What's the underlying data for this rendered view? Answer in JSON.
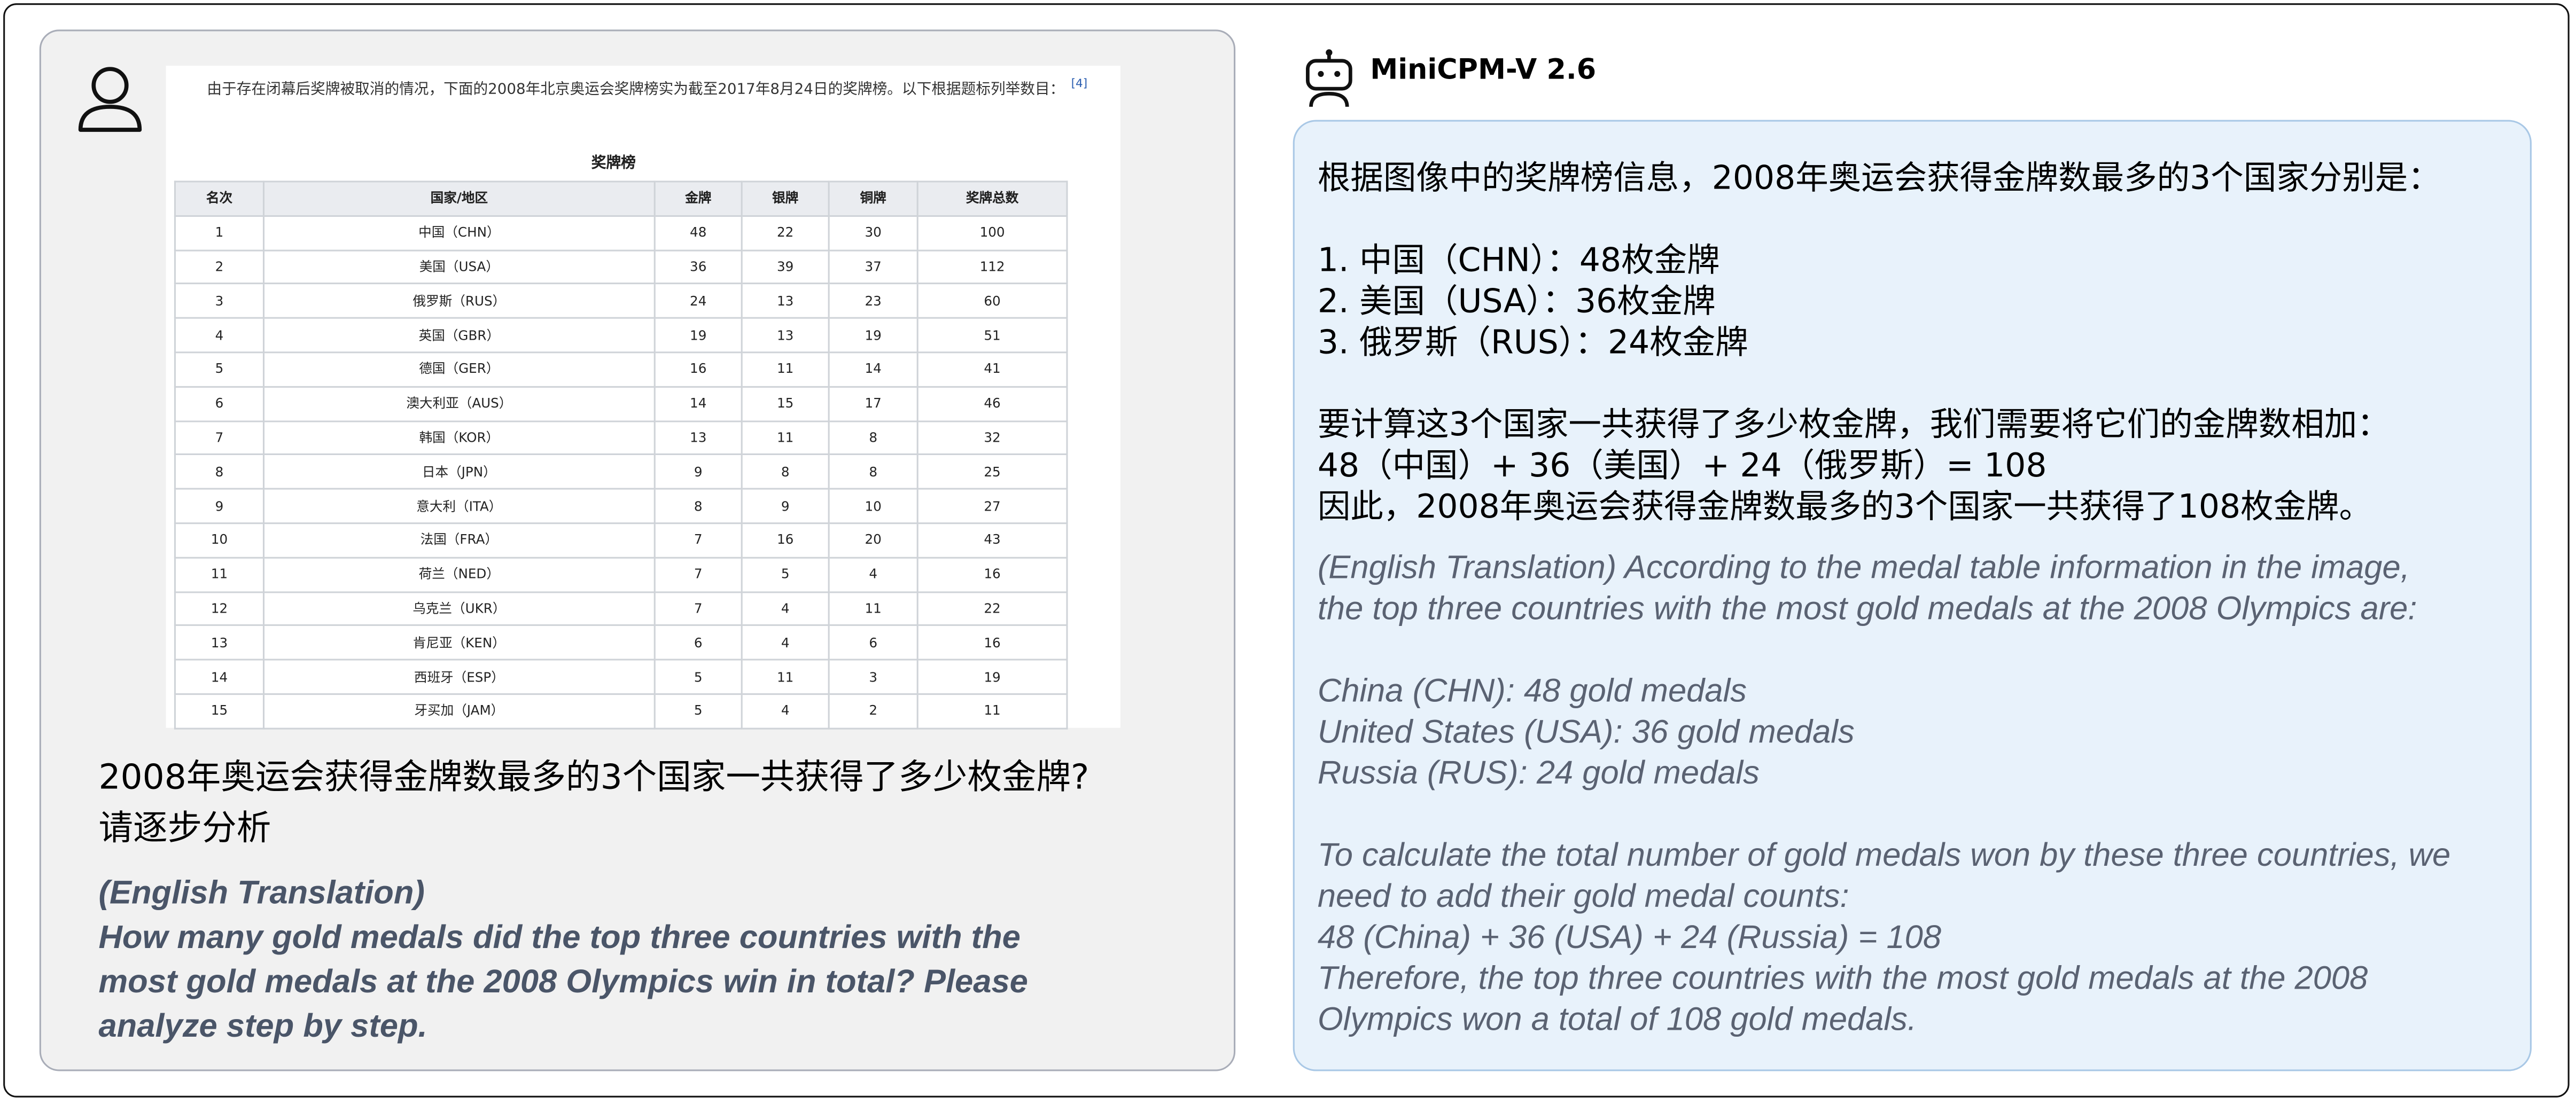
{
  "user": {
    "screenshot": {
      "intro": "由于存在闭幕后奖牌被取消的情况，下面的2008年北京奥运会奖牌榜实为截至2017年8月24日的奖牌榜。以下根据题标列举数目：",
      "footnote": "[4]",
      "table": {
        "title": "奖牌榜",
        "header": [
          "名次",
          "国家/地区",
          "金牌",
          "银牌",
          "铜牌",
          "奖牌总数"
        ],
        "rows": [
          [
            "1",
            "中国（CHN）",
            "48",
            "22",
            "30",
            "100"
          ],
          [
            "2",
            "美国（USA）",
            "36",
            "39",
            "37",
            "112"
          ],
          [
            "3",
            "俄罗斯（RUS）",
            "24",
            "13",
            "23",
            "60"
          ],
          [
            "4",
            "英国（GBR）",
            "19",
            "13",
            "19",
            "51"
          ],
          [
            "5",
            "德国（GER）",
            "16",
            "11",
            "14",
            "41"
          ],
          [
            "6",
            "澳大利亚（AUS）",
            "14",
            "15",
            "17",
            "46"
          ],
          [
            "7",
            "韩国（KOR）",
            "13",
            "11",
            "8",
            "32"
          ],
          [
            "8",
            "日本（JPN）",
            "9",
            "8",
            "8",
            "25"
          ],
          [
            "9",
            "意大利（ITA）",
            "8",
            "9",
            "10",
            "27"
          ],
          [
            "10",
            "法国（FRA）",
            "7",
            "16",
            "20",
            "43"
          ],
          [
            "11",
            "荷兰（NED）",
            "7",
            "5",
            "4",
            "16"
          ],
          [
            "12",
            "乌克兰（UKR）",
            "7",
            "4",
            "11",
            "22"
          ],
          [
            "13",
            "肯尼亚（KEN）",
            "6",
            "4",
            "6",
            "16"
          ],
          [
            "14",
            "西班牙（ESP）",
            "5",
            "11",
            "3",
            "19"
          ],
          [
            "15",
            "牙买加（JAM）",
            "5",
            "4",
            "2",
            "11"
          ]
        ]
      }
    },
    "question": [
      "2008年奥运会获得金牌数最多的3个国家一共获得了多少枚金牌?",
      "请逐步分析"
    ],
    "translation": [
      "(English Translation)",
      "How many gold medals did the top three countries with the",
      "most gold medals at the 2008 Olympics win in total? Please",
      "analyze step by step."
    ]
  },
  "model": {
    "name": "MiniCPM-V 2.6",
    "answer": [
      [
        "根据图像中的奖牌榜信息，2008年奥运会获得金牌数最多的3个国家分别是："
      ],
      [
        "1. 中国（CHN）：48枚金牌",
        "2. 美国（USA）：36枚金牌",
        "3. 俄罗斯（RUS）：24枚金牌"
      ],
      [
        "要计算这3个国家一共获得了多少枚金牌，我们需要将它们的金牌数相加：",
        "48（中国）+ 36（美国）+ 24（俄罗斯）= 108",
        "因此，2008年奥运会获得金牌数最多的3个国家一共获得了108枚金牌。"
      ]
    ],
    "translation": [
      [
        "(English Translation) According to the medal table information in the image,",
        "the top three countries with the most gold medals at the 2008 Olympics are:"
      ],
      [
        "China (CHN): 48 gold medals",
        "United States (USA): 36 gold medals",
        "Russia (RUS): 24 gold medals"
      ],
      [
        "To calculate the total number of gold medals won by these three countries, we",
        "need to add their gold medal counts:",
        "48 (China) + 36 (USA) + 24 (Russia) = 108",
        "Therefore, the top three countries with the most gold medals at the 2008",
        "Olympics won a total of 108 gold medals."
      ]
    ]
  }
}
